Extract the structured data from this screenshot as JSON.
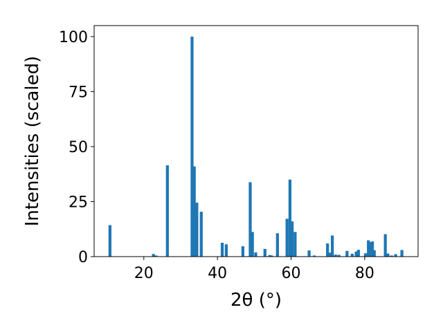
{
  "chart_data": {
    "type": "bar",
    "xlabel": "2θ (°)",
    "ylabel": "Intensities (scaled)",
    "xlim": [
      6.5,
      94.5
    ],
    "ylim": [
      0,
      105
    ],
    "xticks": [
      20,
      40,
      60,
      80
    ],
    "yticks": [
      0,
      25,
      50,
      75,
      100
    ],
    "bar_width": 0.8,
    "bar_color": "#1f77b4",
    "grid": false,
    "x": [
      10.8,
      22.6,
      23.3,
      26.4,
      33.1,
      33.7,
      34.4,
      35.6,
      41.3,
      42.4,
      46.9,
      48.9,
      49.5,
      50.4,
      52.9,
      54.2,
      54.7,
      56.3,
      58.9,
      59.7,
      60.3,
      61.1,
      64.9,
      66.3,
      69.9,
      70.4,
      71.2,
      72.1,
      73.0,
      75.2,
      76.6,
      77.7,
      78.3,
      80.2,
      81.0,
      81.5,
      82.1,
      82.6,
      85.6,
      86.3,
      87.3,
      88.4,
      90.1
    ],
    "values": [
      14.3,
      1.2,
      0.5,
      41.5,
      100,
      41,
      24.5,
      20.4,
      6.3,
      5.6,
      4.7,
      33.8,
      11.2,
      1.9,
      3.5,
      0.7,
      0.5,
      10.6,
      17.2,
      35,
      16,
      11.2,
      2.8,
      0.5,
      6,
      1.8,
      9.6,
      0.9,
      0.8,
      2.6,
      1.3,
      2.3,
      3.1,
      1.5,
      7.4,
      6.6,
      6.9,
      2.9,
      10.2,
      1.4,
      0.5,
      1.1,
      3
    ]
  }
}
